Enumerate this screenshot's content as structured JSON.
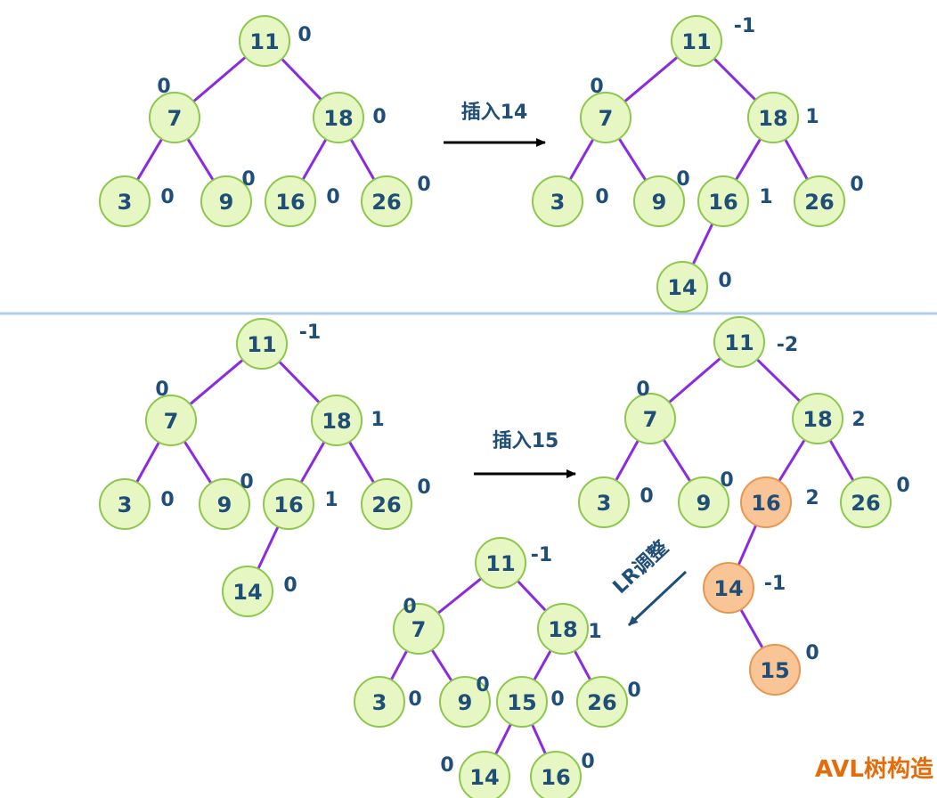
{
  "colors": {
    "edge": "#8a2be2",
    "normal_fill": "#e6f7c4",
    "normal_stroke": "#8cc84b",
    "highlight_fill": "#f9c596",
    "highlight_stroke": "#e8964f",
    "text": "#1f4e79",
    "arrow": "#000000",
    "arrow_lr": "#1f4e79",
    "divider": "#b3cde8",
    "footer": "#e46c0a"
  },
  "operations": {
    "insert_14": "插入14",
    "insert_15": "插入15",
    "lr_adjust": "LR调整"
  },
  "footer": {
    "title": "AVL树构造"
  },
  "trees": {
    "t1": {
      "nodes": [
        {
          "id": "n11",
          "value": "11",
          "bf": "0"
        },
        {
          "id": "n7",
          "value": "7",
          "bf": "0"
        },
        {
          "id": "n18",
          "value": "18",
          "bf": "0"
        },
        {
          "id": "n3",
          "value": "3",
          "bf": "0"
        },
        {
          "id": "n9",
          "value": "9",
          "bf": "0"
        },
        {
          "id": "n16",
          "value": "16",
          "bf": "0"
        },
        {
          "id": "n26",
          "value": "26",
          "bf": "0"
        }
      ],
      "edges": [
        [
          "n11",
          "n7"
        ],
        [
          "n11",
          "n18"
        ],
        [
          "n7",
          "n3"
        ],
        [
          "n7",
          "n9"
        ],
        [
          "n18",
          "n16"
        ],
        [
          "n18",
          "n26"
        ]
      ]
    },
    "t2": {
      "nodes": [
        {
          "id": "n11",
          "value": "11",
          "bf": "-1"
        },
        {
          "id": "n7",
          "value": "7",
          "bf": "0"
        },
        {
          "id": "n18",
          "value": "18",
          "bf": "1"
        },
        {
          "id": "n3",
          "value": "3",
          "bf": "0"
        },
        {
          "id": "n9",
          "value": "9",
          "bf": "0"
        },
        {
          "id": "n16",
          "value": "16",
          "bf": "1"
        },
        {
          "id": "n26",
          "value": "26",
          "bf": "0"
        },
        {
          "id": "n14",
          "value": "14",
          "bf": "0"
        }
      ],
      "edges": [
        [
          "n11",
          "n7"
        ],
        [
          "n11",
          "n18"
        ],
        [
          "n7",
          "n3"
        ],
        [
          "n7",
          "n9"
        ],
        [
          "n18",
          "n16"
        ],
        [
          "n18",
          "n26"
        ],
        [
          "n16",
          "n14"
        ]
      ]
    },
    "t3": {
      "nodes": [
        {
          "id": "n11",
          "value": "11",
          "bf": "-1"
        },
        {
          "id": "n7",
          "value": "7",
          "bf": "0"
        },
        {
          "id": "n18",
          "value": "18",
          "bf": "1"
        },
        {
          "id": "n3",
          "value": "3",
          "bf": "0"
        },
        {
          "id": "n9",
          "value": "9",
          "bf": "0"
        },
        {
          "id": "n16",
          "value": "16",
          "bf": "1"
        },
        {
          "id": "n26",
          "value": "26",
          "bf": "0"
        },
        {
          "id": "n14",
          "value": "14",
          "bf": "0"
        }
      ],
      "edges": [
        [
          "n11",
          "n7"
        ],
        [
          "n11",
          "n18"
        ],
        [
          "n7",
          "n3"
        ],
        [
          "n7",
          "n9"
        ],
        [
          "n18",
          "n16"
        ],
        [
          "n18",
          "n26"
        ],
        [
          "n16",
          "n14"
        ]
      ]
    },
    "t4": {
      "nodes": [
        {
          "id": "n11",
          "value": "11",
          "bf": "-2"
        },
        {
          "id": "n7",
          "value": "7",
          "bf": "0"
        },
        {
          "id": "n18",
          "value": "18",
          "bf": "2"
        },
        {
          "id": "n3",
          "value": "3",
          "bf": "0"
        },
        {
          "id": "n9",
          "value": "9",
          "bf": "0"
        },
        {
          "id": "n16",
          "value": "16",
          "bf": "2",
          "highlight": true
        },
        {
          "id": "n26",
          "value": "26",
          "bf": "0"
        },
        {
          "id": "n14",
          "value": "14",
          "bf": "-1",
          "highlight": true
        },
        {
          "id": "n15",
          "value": "15",
          "bf": "0",
          "highlight": true
        }
      ],
      "edges": [
        [
          "n11",
          "n7"
        ],
        [
          "n11",
          "n18"
        ],
        [
          "n7",
          "n3"
        ],
        [
          "n7",
          "n9"
        ],
        [
          "n18",
          "n16"
        ],
        [
          "n18",
          "n26"
        ],
        [
          "n16",
          "n14"
        ],
        [
          "n14",
          "n15"
        ]
      ]
    },
    "t5": {
      "nodes": [
        {
          "id": "n11",
          "value": "11",
          "bf": "-1"
        },
        {
          "id": "n7",
          "value": "7",
          "bf": "0"
        },
        {
          "id": "n18",
          "value": "18",
          "bf": "1"
        },
        {
          "id": "n3",
          "value": "3",
          "bf": "0"
        },
        {
          "id": "n9",
          "value": "9",
          "bf": "0"
        },
        {
          "id": "n15",
          "value": "15",
          "bf": "0"
        },
        {
          "id": "n26",
          "value": "26",
          "bf": "0"
        },
        {
          "id": "n14",
          "value": "14",
          "bf": "0"
        },
        {
          "id": "n16",
          "value": "16",
          "bf": "0"
        }
      ],
      "edges": [
        [
          "n11",
          "n7"
        ],
        [
          "n11",
          "n18"
        ],
        [
          "n7",
          "n3"
        ],
        [
          "n7",
          "n9"
        ],
        [
          "n18",
          "n15"
        ],
        [
          "n18",
          "n26"
        ],
        [
          "n15",
          "n14"
        ],
        [
          "n15",
          "n16"
        ]
      ]
    }
  }
}
